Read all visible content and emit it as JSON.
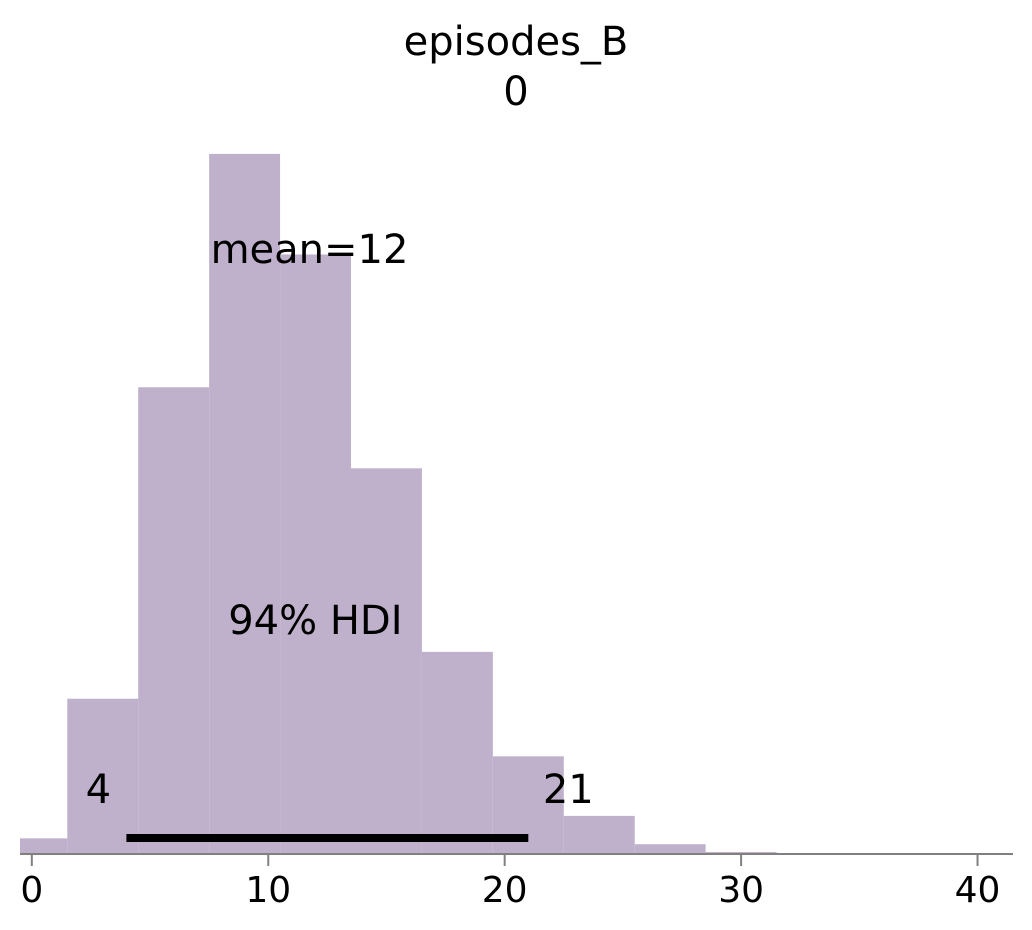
{
  "chart_data": {
    "type": "bar",
    "title": "episodes_B",
    "subtitle": "0",
    "bin_edges": [
      -0.5,
      1.5,
      4.5,
      7.5,
      10.5,
      13.5,
      16.5,
      19.5,
      22.5,
      25.5,
      28.5,
      31.5
    ],
    "values": [
      0.0075,
      0.079,
      0.2385,
      0.358,
      0.3065,
      0.197,
      0.103,
      0.0495,
      0.019,
      0.0045,
      0.0005
    ],
    "xlim": [
      -0.5,
      41.5
    ],
    "ylim": [
      0,
      0.36
    ],
    "xticks": [
      "0",
      "10",
      "20",
      "30",
      "40"
    ],
    "xtick_values": [
      0,
      10,
      20,
      30,
      40
    ],
    "yaxis_visible": false,
    "grid": false,
    "annotations": {
      "mean_label": "mean=12",
      "mean_value": 12,
      "hdi_label": "94% HDI",
      "hdi_low": 4,
      "hdi_high": 21,
      "hdi_low_label": "4",
      "hdi_high_label": "21"
    },
    "colors": {
      "bars": "#bfb1cb",
      "hdi_line": "#000000",
      "axis": "#808080"
    }
  }
}
